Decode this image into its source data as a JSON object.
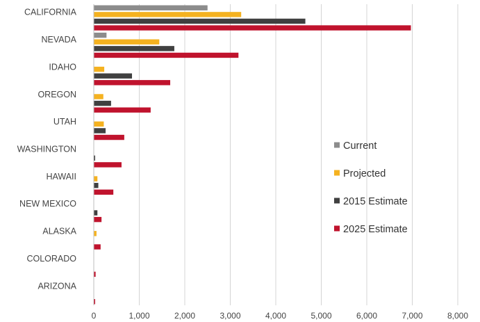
{
  "chart_data": {
    "type": "bar",
    "orientation": "horizontal",
    "categories": [
      "CALIFORNIA",
      "NEVADA",
      "IDAHO",
      "OREGON",
      "UTAH",
      "WASHINGTON",
      "HAWAII",
      "NEW MEXICO",
      "ALASKA",
      "COLORADO",
      "ARIZONA"
    ],
    "series": [
      {
        "name": "Current",
        "color": "#8c8c8c",
        "values": [
          2500,
          280,
          0,
          0,
          0,
          0,
          0,
          0,
          0,
          0,
          0
        ]
      },
      {
        "name": "Projected",
        "color": "#f5b220",
        "values": [
          3240,
          1440,
          230,
          210,
          220,
          0,
          80,
          0,
          60,
          0,
          0
        ]
      },
      {
        "name": "2015 Estimate",
        "color": "#404040",
        "values": [
          4650,
          1770,
          840,
          380,
          260,
          30,
          100,
          80,
          0,
          0,
          0
        ]
      },
      {
        "name": "2025 Estimate",
        "color": "#c0132d",
        "values": [
          6970,
          3180,
          1680,
          1250,
          670,
          610,
          430,
          170,
          150,
          40,
          30
        ]
      }
    ],
    "xlim": [
      0,
      8000
    ],
    "xticks": [
      "0",
      "1,000",
      "2,000",
      "3,000",
      "4,000",
      "5,000",
      "6,000",
      "7,000",
      "8,000"
    ],
    "grid": "vertical",
    "legend": "right"
  }
}
